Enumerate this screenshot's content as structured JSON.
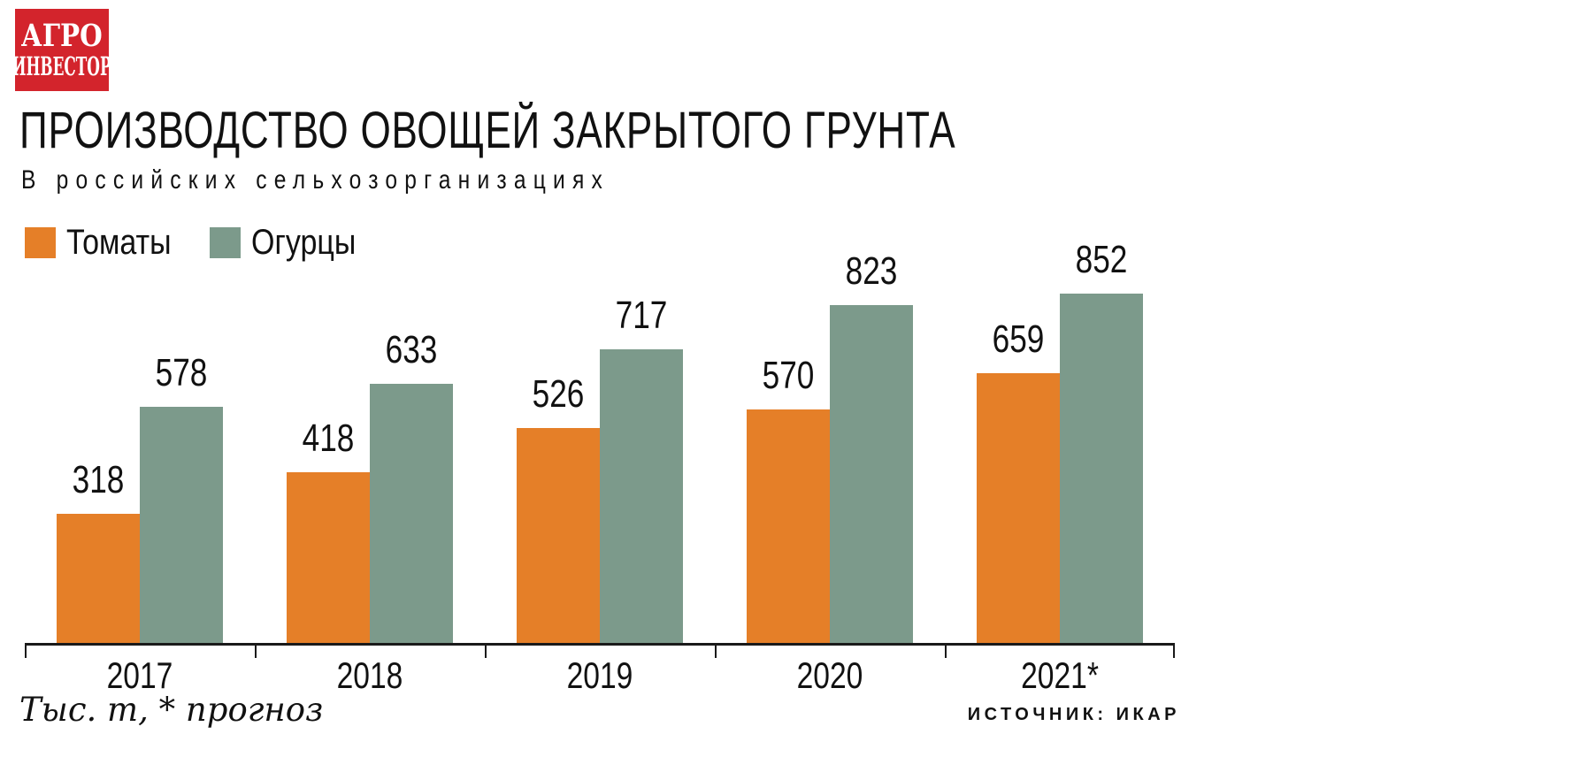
{
  "logo": {
    "line1": "АГРО",
    "line2": "ИНВЕСТОР",
    "background_color": "#D3242C",
    "text_color": "#FFFFFF"
  },
  "header": {
    "title": "ПРОИЗВОДСТВО ОВОЩЕЙ ЗАКРЫТОГО ГРУНТА",
    "subtitle": "В российских сельхозорганизациях"
  },
  "footer": {
    "note": "Тыс. т, * прогноз",
    "source": "ИСТОЧНИК: ИКАР"
  },
  "chart_data": {
    "type": "bar",
    "title": "ПРОИЗВОДСТВО ОВОЩЕЙ ЗАКРЫТОГО ГРУНТА",
    "subtitle": "В российских сельхозорганизациях",
    "unit": "Тыс. т",
    "footnote": "* прогноз",
    "source": "ИСТОЧНИК: ИКАР",
    "categories": [
      "2017",
      "2018",
      "2019",
      "2020",
      "2021*"
    ],
    "series": [
      {
        "name": "Томаты",
        "color": "#E57F28",
        "values": [
          318,
          418,
          526,
          570,
          659
        ]
      },
      {
        "name": "Огурцы",
        "color": "#7C9A8B",
        "values": [
          578,
          633,
          717,
          823,
          852
        ]
      }
    ],
    "ylim": [
      0,
      900
    ],
    "grid": false,
    "bar_value_labels": true,
    "legend_position": "top-left",
    "axis_color": "#1A1A1A",
    "text_color": "#111111"
  }
}
